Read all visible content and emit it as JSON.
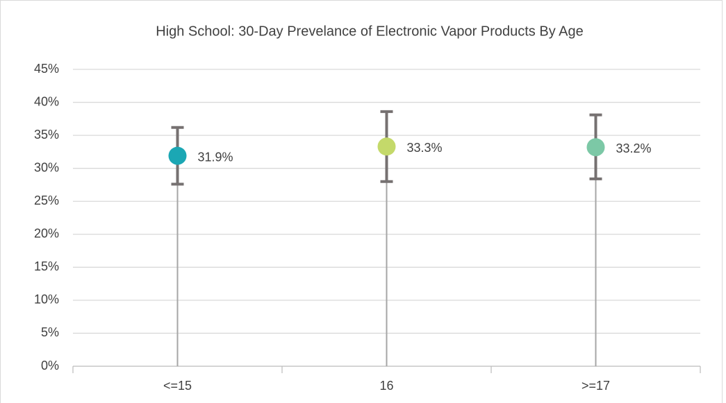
{
  "chart_data": {
    "type": "dot",
    "title": "High School: 30-Day Prevelance of Electronic Vapor Products By Age",
    "categories": [
      "<=15",
      "16",
      ">=17"
    ],
    "series": [
      {
        "values": [
          31.9,
          33.3,
          33.2
        ],
        "value_labels": [
          "31.9%",
          "33.3%",
          "33.2%"
        ],
        "ci_lower": [
          27.6,
          28.0,
          28.4
        ],
        "ci_upper": [
          36.2,
          38.6,
          38.1
        ],
        "colors": [
          "#1ba7b4",
          "#c4d96a",
          "#7cc8a6"
        ]
      }
    ],
    "ylim": [
      0,
      45
    ],
    "yticks": [
      {
        "value": 0,
        "label": "0%"
      },
      {
        "value": 5,
        "label": "5%"
      },
      {
        "value": 10,
        "label": "10%"
      },
      {
        "value": 15,
        "label": "15%"
      },
      {
        "value": 20,
        "label": "20%"
      },
      {
        "value": 25,
        "label": "25%"
      },
      {
        "value": 30,
        "label": "30%"
      },
      {
        "value": 35,
        "label": "35%"
      },
      {
        "value": 40,
        "label": "40%"
      },
      {
        "value": 45,
        "label": "45%"
      }
    ],
    "grid": true
  }
}
